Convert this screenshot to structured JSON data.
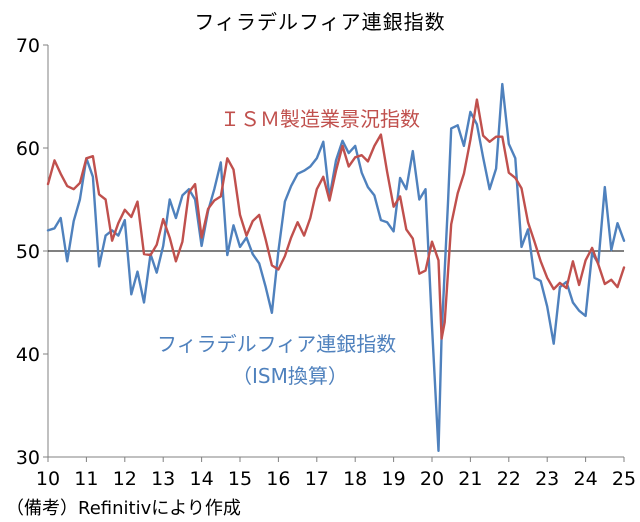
{
  "chart_data": {
    "type": "line",
    "title": "フィラデルフィア連銀指数",
    "note": "（備考）Refinitivにより作成",
    "ylim": [
      30,
      70
    ],
    "yticks": [
      30,
      40,
      50,
      60,
      70
    ],
    "xlim": [
      2010,
      2025
    ],
    "xticks": [
      "10",
      "11",
      "12",
      "13",
      "14",
      "15",
      "16",
      "17",
      "18",
      "19",
      "20",
      "21",
      "22",
      "23",
      "24",
      "25"
    ],
    "reference_line": 50,
    "colors": {
      "ism": "#c0504d",
      "philly": "#4f81bd",
      "ref": "#000000",
      "axis": "#808080"
    },
    "series": [
      {
        "key": "ism",
        "name": "ＩＳＭ製造業景況指数",
        "name_line2": "",
        "color": "#c0504d",
        "x": [
          2010.0,
          2010.17,
          2010.33,
          2010.5,
          2010.67,
          2010.83,
          2011.0,
          2011.17,
          2011.33,
          2011.5,
          2011.67,
          2011.83,
          2012.0,
          2012.17,
          2012.33,
          2012.5,
          2012.67,
          2012.83,
          2013.0,
          2013.17,
          2013.33,
          2013.5,
          2013.67,
          2013.83,
          2014.0,
          2014.17,
          2014.33,
          2014.5,
          2014.67,
          2014.83,
          2015.0,
          2015.17,
          2015.33,
          2015.5,
          2015.67,
          2015.83,
          2016.0,
          2016.17,
          2016.33,
          2016.5,
          2016.67,
          2016.83,
          2017.0,
          2017.17,
          2017.33,
          2017.5,
          2017.67,
          2017.83,
          2018.0,
          2018.17,
          2018.33,
          2018.5,
          2018.67,
          2018.83,
          2019.0,
          2019.17,
          2019.33,
          2019.5,
          2019.67,
          2019.83,
          2020.0,
          2020.17,
          2020.25,
          2020.33,
          2020.5,
          2020.67,
          2020.83,
          2021.0,
          2021.17,
          2021.33,
          2021.5,
          2021.67,
          2021.83,
          2022.0,
          2022.17,
          2022.33,
          2022.5,
          2022.67,
          2022.83,
          2023.0,
          2023.17,
          2023.33,
          2023.5,
          2023.67,
          2023.83,
          2024.0,
          2024.17,
          2024.33,
          2024.5,
          2024.67,
          2024.83,
          2025.0
        ],
        "y": [
          56.5,
          58.8,
          57.5,
          56.3,
          56.0,
          56.6,
          59.0,
          59.2,
          55.5,
          55.0,
          51.0,
          52.7,
          54.0,
          53.3,
          54.8,
          49.7,
          49.6,
          50.6,
          53.1,
          51.3,
          49.0,
          50.9,
          55.7,
          56.5,
          51.3,
          54.1,
          54.9,
          55.3,
          59.0,
          57.9,
          53.5,
          51.5,
          52.9,
          53.5,
          51.1,
          48.6,
          48.2,
          49.5,
          51.3,
          52.8,
          51.5,
          53.2,
          56.0,
          57.2,
          54.9,
          57.8,
          60.2,
          58.2,
          59.1,
          59.3,
          58.7,
          60.2,
          61.3,
          57.7,
          54.3,
          55.3,
          52.1,
          51.2,
          47.8,
          48.1,
          50.9,
          49.1,
          41.5,
          43.1,
          52.6,
          55.6,
          57.5,
          60.8,
          64.7,
          61.2,
          60.6,
          61.1,
          61.1,
          57.6,
          57.1,
          56.1,
          52.8,
          50.9,
          49.0,
          47.4,
          46.3,
          46.9,
          46.4,
          49.0,
          46.7,
          49.1,
          50.3,
          48.7,
          46.8,
          47.2,
          46.5,
          48.4
        ]
      },
      {
        "key": "philly",
        "name": "フィラデルフィア連銀指数",
        "name_line2": "（ISM換算）",
        "color": "#4f81bd",
        "x": [
          2010.0,
          2010.17,
          2010.33,
          2010.5,
          2010.67,
          2010.83,
          2011.0,
          2011.17,
          2011.33,
          2011.5,
          2011.67,
          2011.83,
          2012.0,
          2012.17,
          2012.33,
          2012.5,
          2012.67,
          2012.83,
          2013.0,
          2013.17,
          2013.33,
          2013.5,
          2013.67,
          2013.83,
          2014.0,
          2014.17,
          2014.33,
          2014.5,
          2014.67,
          2014.83,
          2015.0,
          2015.17,
          2015.33,
          2015.5,
          2015.67,
          2015.83,
          2016.0,
          2016.17,
          2016.33,
          2016.5,
          2016.67,
          2016.83,
          2017.0,
          2017.17,
          2017.33,
          2017.5,
          2017.67,
          2017.83,
          2018.0,
          2018.17,
          2018.33,
          2018.5,
          2018.67,
          2018.83,
          2019.0,
          2019.17,
          2019.33,
          2019.5,
          2019.67,
          2019.83,
          2020.0,
          2020.17,
          2020.25,
          2020.33,
          2020.42,
          2020.5,
          2020.67,
          2020.83,
          2021.0,
          2021.17,
          2021.33,
          2021.5,
          2021.67,
          2021.83,
          2022.0,
          2022.17,
          2022.33,
          2022.5,
          2022.67,
          2022.83,
          2023.0,
          2023.17,
          2023.33,
          2023.5,
          2023.67,
          2023.83,
          2024.0,
          2024.17,
          2024.33,
          2024.5,
          2024.67,
          2024.83,
          2025.0
        ],
        "y": [
          52.0,
          52.2,
          53.2,
          49.0,
          52.9,
          55.0,
          59.0,
          57.2,
          48.5,
          51.5,
          52.0,
          51.5,
          53.0,
          45.8,
          48.0,
          45.0,
          49.7,
          47.9,
          50.5,
          55.0,
          53.2,
          55.4,
          56.0,
          55.0,
          50.5,
          53.9,
          56.0,
          58.6,
          49.6,
          52.5,
          50.4,
          51.3,
          49.7,
          48.8,
          46.5,
          44.0,
          50.0,
          54.8,
          56.3,
          57.5,
          57.8,
          58.2,
          59.0,
          60.6,
          55.2,
          58.8,
          60.7,
          59.5,
          60.2,
          57.6,
          56.2,
          55.4,
          53.0,
          52.8,
          51.9,
          57.1,
          56.0,
          59.7,
          55.0,
          56.0,
          42.7,
          30.6,
          41.8,
          48.1,
          54.9,
          61.9,
          62.2,
          60.2,
          63.5,
          62.3,
          59.1,
          56.0,
          58.0,
          66.2,
          60.4,
          59.0,
          50.4,
          52.1,
          47.4,
          47.1,
          44.6,
          41.0,
          46.5,
          47.0,
          45.0,
          44.2,
          43.7,
          49.8,
          48.8,
          56.2,
          50.1,
          52.7,
          51.0
        ]
      }
    ]
  }
}
